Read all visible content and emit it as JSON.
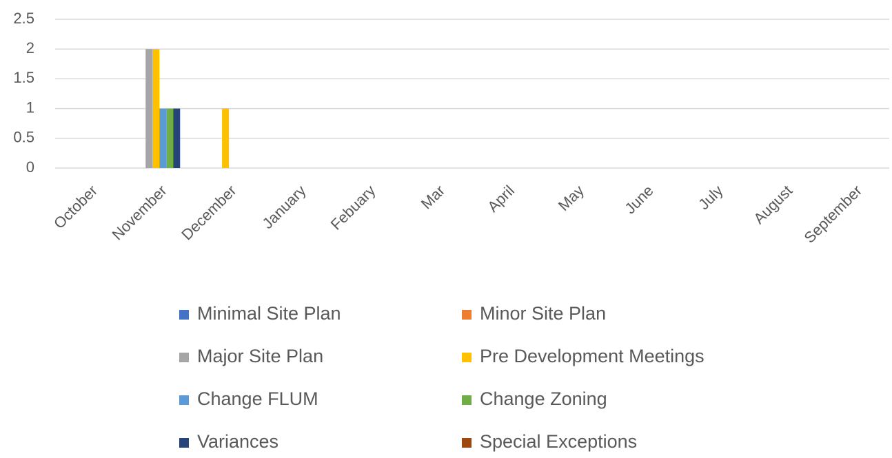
{
  "chart_data": {
    "type": "bar",
    "categories": [
      "October",
      "November",
      "December",
      "January",
      "Febuary",
      "Mar",
      "April",
      "May",
      "June",
      "July",
      "August",
      "September"
    ],
    "series": [
      {
        "name": "Minimal Site Plan",
        "color": "#4472c4",
        "values": [
          0,
          0,
          0,
          0,
          0,
          0,
          0,
          0,
          0,
          0,
          0,
          0
        ]
      },
      {
        "name": "Minor Site Plan",
        "color": "#ed7d31",
        "values": [
          0,
          0,
          0,
          0,
          0,
          0,
          0,
          0,
          0,
          0,
          0,
          0
        ]
      },
      {
        "name": "Major Site Plan",
        "color": "#a5a5a5",
        "values": [
          0,
          2,
          0,
          0,
          0,
          0,
          0,
          0,
          0,
          0,
          0,
          0
        ]
      },
      {
        "name": "Pre Development Meetings",
        "color": "#ffc000",
        "values": [
          0,
          2,
          1,
          0,
          0,
          0,
          0,
          0,
          0,
          0,
          0,
          0
        ]
      },
      {
        "name": "Change FLUM",
        "color": "#5b9bd5",
        "values": [
          0,
          1,
          0,
          0,
          0,
          0,
          0,
          0,
          0,
          0,
          0,
          0
        ]
      },
      {
        "name": "Change Zoning",
        "color": "#70ad47",
        "values": [
          0,
          1,
          0,
          0,
          0,
          0,
          0,
          0,
          0,
          0,
          0,
          0
        ]
      },
      {
        "name": "Variances",
        "color": "#264478",
        "values": [
          0,
          1,
          0,
          0,
          0,
          0,
          0,
          0,
          0,
          0,
          0,
          0
        ]
      },
      {
        "name": "Special Exceptions",
        "color": "#9e480e",
        "values": [
          0,
          0,
          0,
          0,
          0,
          0,
          0,
          0,
          0,
          0,
          0,
          0
        ]
      }
    ],
    "ylim": [
      0,
      2.5
    ],
    "yticks": [
      0,
      0.5,
      1,
      1.5,
      2,
      2.5
    ],
    "grid": true
  }
}
